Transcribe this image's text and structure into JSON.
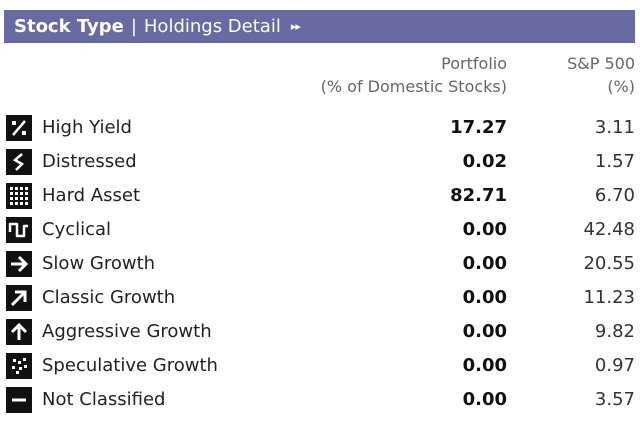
{
  "header": {
    "title": "Stock Type",
    "separator": "|",
    "subtitle": "Holdings Detail",
    "more": "▸▸"
  },
  "columns": {
    "portfolio_line1": "Portfolio",
    "portfolio_line2": "(% of Domestic Stocks)",
    "sp_line1": "S&P 500",
    "sp_line2": "(%)"
  },
  "rows": [
    {
      "label": "High Yield",
      "portfolio": "17.27",
      "sp500": "3.11",
      "icon": "percent-icon"
    },
    {
      "label": "Distressed",
      "portfolio": "0.02",
      "sp500": "1.57",
      "icon": "zigzag-down-icon"
    },
    {
      "label": "Hard Asset",
      "portfolio": "82.71",
      "sp500": "6.70",
      "icon": "dot-grid-icon"
    },
    {
      "label": "Cyclical",
      "portfolio": "0.00",
      "sp500": "42.48",
      "icon": "wave-icon"
    },
    {
      "label": "Slow Growth",
      "portfolio": "0.00",
      "sp500": "20.55",
      "icon": "arrow-right-icon"
    },
    {
      "label": "Classic Growth",
      "portfolio": "0.00",
      "sp500": "11.23",
      "icon": "arrow-up-right-icon"
    },
    {
      "label": "Aggressive Growth",
      "portfolio": "0.00",
      "sp500": "9.82",
      "icon": "arrow-up-icon"
    },
    {
      "label": "Speculative Growth",
      "portfolio": "0.00",
      "sp500": "0.97",
      "icon": "scatter-dots-icon"
    },
    {
      "label": "Not Classified",
      "portfolio": "0.00",
      "sp500": "3.57",
      "icon": "dash-icon"
    }
  ]
}
